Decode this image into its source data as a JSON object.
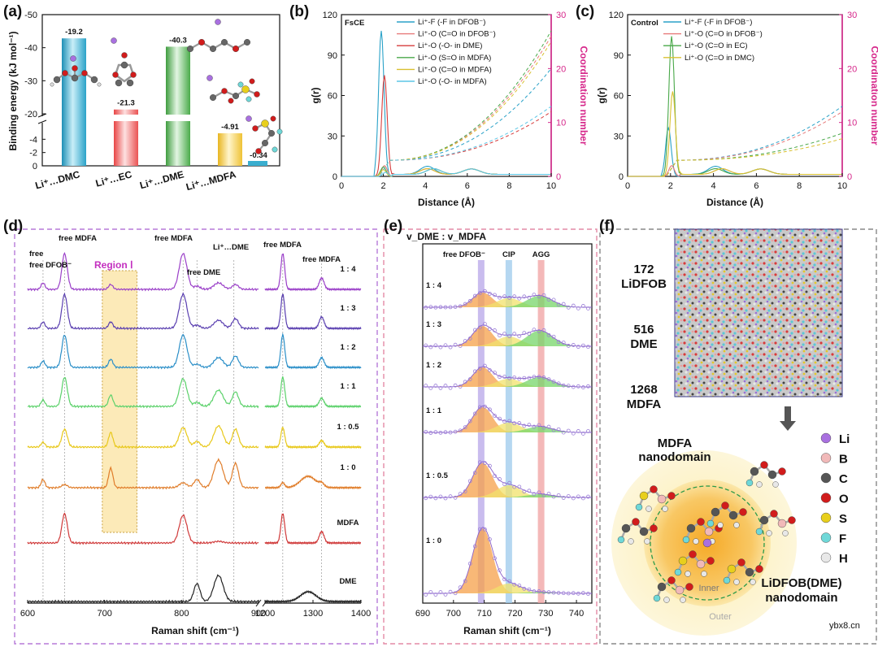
{
  "panel_labels": {
    "a": "(a)",
    "b": "(b)",
    "c": "(c)",
    "d": "(d)",
    "e": "(e)",
    "f": "(f)"
  },
  "chart_data": [
    {
      "panel": "(a)",
      "type": "bar",
      "ylabel": "Binding energy (kJ mol⁻¹)",
      "categories": [
        "Li⁺…DMC",
        "Li⁺…EC",
        "Li⁺…DME",
        "Li⁺…MDFA"
      ],
      "values": [
        -19.2,
        -21.3,
        -40.3,
        -4.91
      ],
      "value_labels": [
        "-19.2",
        "-21.3",
        "-40.3",
        "-4.91"
      ],
      "extra_label": "-0.34",
      "colors": [
        "#3aaecf",
        "#ee5a5a",
        "#5fb55f",
        "#f2c443"
      ],
      "ylim_upper": [
        -50,
        -20
      ],
      "ylim_lower": [
        -6,
        0
      ],
      "yticks_upper": [
        "-50",
        "-40",
        "-30",
        "-20"
      ],
      "yticks_lower": [
        "-4",
        "-2",
        "0"
      ]
    },
    {
      "panel": "(b)",
      "type": "line",
      "tag": "FsCE",
      "xlabel": "Distance (Å)",
      "ylabel": "g(r)",
      "ylabel_right": "Coordination number",
      "xlim": [
        0,
        10
      ],
      "ylim": [
        0,
        120
      ],
      "ylim_right": [
        0,
        30
      ],
      "xticks": [
        "0",
        "2",
        "4",
        "6",
        "8",
        "10"
      ],
      "yticks": [
        "0",
        "30",
        "60",
        "90",
        "120"
      ],
      "yticks_right": [
        "0",
        "10",
        "20",
        "30"
      ],
      "series": [
        {
          "name": "Li⁺-F (-F in DFOB⁻)",
          "color": "#2aa2c8",
          "peak_x": 1.9,
          "peak_y": 108,
          "cn_end": 20
        },
        {
          "name": "Li⁺-O (C=O in DFOB⁻)",
          "color": "#e77a7a",
          "peak_x": 2.05,
          "peak_y": 8,
          "cn_end": 26
        },
        {
          "name": "Li⁺-O (-O- in DME)",
          "color": "#d63c3c",
          "peak_x": 2.05,
          "peak_y": 75,
          "cn_end": 12
        },
        {
          "name": "Li⁺-O (S=O in MDFA)",
          "color": "#49a849",
          "peak_x": 2.0,
          "peak_y": 7,
          "cn_end": 27
        },
        {
          "name": "Li⁺-O (C=O in MDFA)",
          "color": "#d9c030",
          "peak_x": 2.0,
          "peak_y": 5,
          "cn_end": 25
        },
        {
          "name": "Li⁺-O (-O- in MDFA)",
          "color": "#5cc6e6",
          "peak_x": 2.1,
          "peak_y": 3,
          "cn_end": 13
        }
      ]
    },
    {
      "panel": "(c)",
      "type": "line",
      "tag": "Control",
      "xlabel": "Distance (Å)",
      "ylabel": "g(r)",
      "ylabel_right": "Coordination number",
      "xlim": [
        0,
        10
      ],
      "ylim": [
        0,
        120
      ],
      "ylim_right": [
        0,
        30
      ],
      "xticks": [
        "0",
        "2",
        "4",
        "6",
        "8",
        "10"
      ],
      "yticks": [
        "0",
        "30",
        "60",
        "90",
        "120"
      ],
      "yticks_right": [
        "0",
        "10",
        "20",
        "30"
      ],
      "series": [
        {
          "name": "Li⁺-F (-F in DFOB⁻)",
          "color": "#2aa2c8",
          "peak_x": 1.9,
          "peak_y": 36,
          "cn_end": 13
        },
        {
          "name": "Li⁺-O (C=O in DFOB⁻)",
          "color": "#e77a7a",
          "peak_x": 2.05,
          "peak_y": 8,
          "cn_end": 12
        },
        {
          "name": "Li⁺-O (C=O in EC)",
          "color": "#49a849",
          "peak_x": 2.05,
          "peak_y": 104,
          "cn_end": 8
        },
        {
          "name": "Li⁺-O (C=O in DMC)",
          "color": "#d9c030",
          "peak_x": 2.1,
          "peak_y": 63,
          "cn_end": 7
        }
      ]
    },
    {
      "panel": "(d)",
      "type": "line",
      "xlabel": "Raman shift (cm⁻¹)",
      "xticks_left": [
        "600",
        "700",
        "800",
        "900"
      ],
      "xticks_right": [
        "1200",
        "1300",
        "1400"
      ],
      "annotations": [
        "free DFOB⁻",
        "free MDFA",
        "Region Ⅰ",
        "free MDFA",
        "free DME",
        "Li⁺…DME",
        "free MDFA",
        "free MDFA"
      ],
      "series": [
        {
          "name": "1 : 4",
          "color": "#9a3fc8"
        },
        {
          "name": "1 : 3",
          "color": "#5a3fb0"
        },
        {
          "name": "1 : 2",
          "color": "#2b8fc8"
        },
        {
          "name": "1 : 1",
          "color": "#5bd16a"
        },
        {
          "name": "1 : 0.5",
          "color": "#e8c81a"
        },
        {
          "name": "1 : 0",
          "color": "#e07d2a"
        },
        {
          "name": "MDFA",
          "color": "#d03a3a"
        },
        {
          "name": "DME",
          "color": "#222222"
        }
      ]
    },
    {
      "panel": "(e)",
      "type": "area",
      "title": "v_DME : v_MDFA",
      "xlabel": "Raman shift (cm⁻¹)",
      "xlim": [
        690,
        745
      ],
      "xticks": [
        "690",
        "700",
        "710",
        "720",
        "730",
        "740"
      ],
      "bands": [
        {
          "name": "free DFOB⁻",
          "center": 709,
          "color": "#b7a6e8"
        },
        {
          "name": "CIP",
          "center": 718,
          "color": "#9cc9ec"
        },
        {
          "name": "AGG",
          "center": 728.5,
          "color": "#f0a0a0"
        }
      ],
      "rows": [
        {
          "ratio": "1 : 4",
          "free": 0.45,
          "cip": 0.28,
          "agg": 0.35
        },
        {
          "ratio": "1 : 3",
          "free": 0.62,
          "cip": 0.3,
          "agg": 0.48
        },
        {
          "ratio": "1 : 2",
          "free": 0.6,
          "cip": 0.25,
          "agg": 0.3
        },
        {
          "ratio": "1 : 1",
          "free": 0.78,
          "cip": 0.3,
          "agg": 0.18
        },
        {
          "ratio": "1 : 0.5",
          "free": 0.85,
          "cip": 0.3,
          "agg": 0.08
        },
        {
          "ratio": "1 : 0",
          "free": 1.0,
          "cip": 0.15,
          "agg": 0.02
        }
      ]
    }
  ],
  "panel_f": {
    "counts": [
      {
        "number": "172",
        "name": "LiDFOB"
      },
      {
        "number": "516",
        "name": "DME"
      },
      {
        "number": "1268",
        "name": "MDFA"
      }
    ],
    "nano_mdfa": [
      "MDFA",
      "nanodomain"
    ],
    "nano_li": [
      "LiDFOB(DME)",
      "nanodomain"
    ],
    "inner": "Inner",
    "outer": "Outer",
    "atoms": [
      {
        "sym": "Li",
        "color": "#a970e0"
      },
      {
        "sym": "B",
        "color": "#f1b9b9"
      },
      {
        "sym": "C",
        "color": "#555555"
      },
      {
        "sym": "O",
        "color": "#d11c1c"
      },
      {
        "sym": "S",
        "color": "#e8cf1c"
      },
      {
        "sym": "F",
        "color": "#6fd8d8"
      },
      {
        "sym": "H",
        "color": "#e8e8e8"
      }
    ]
  },
  "watermark": "ybx8.cn"
}
